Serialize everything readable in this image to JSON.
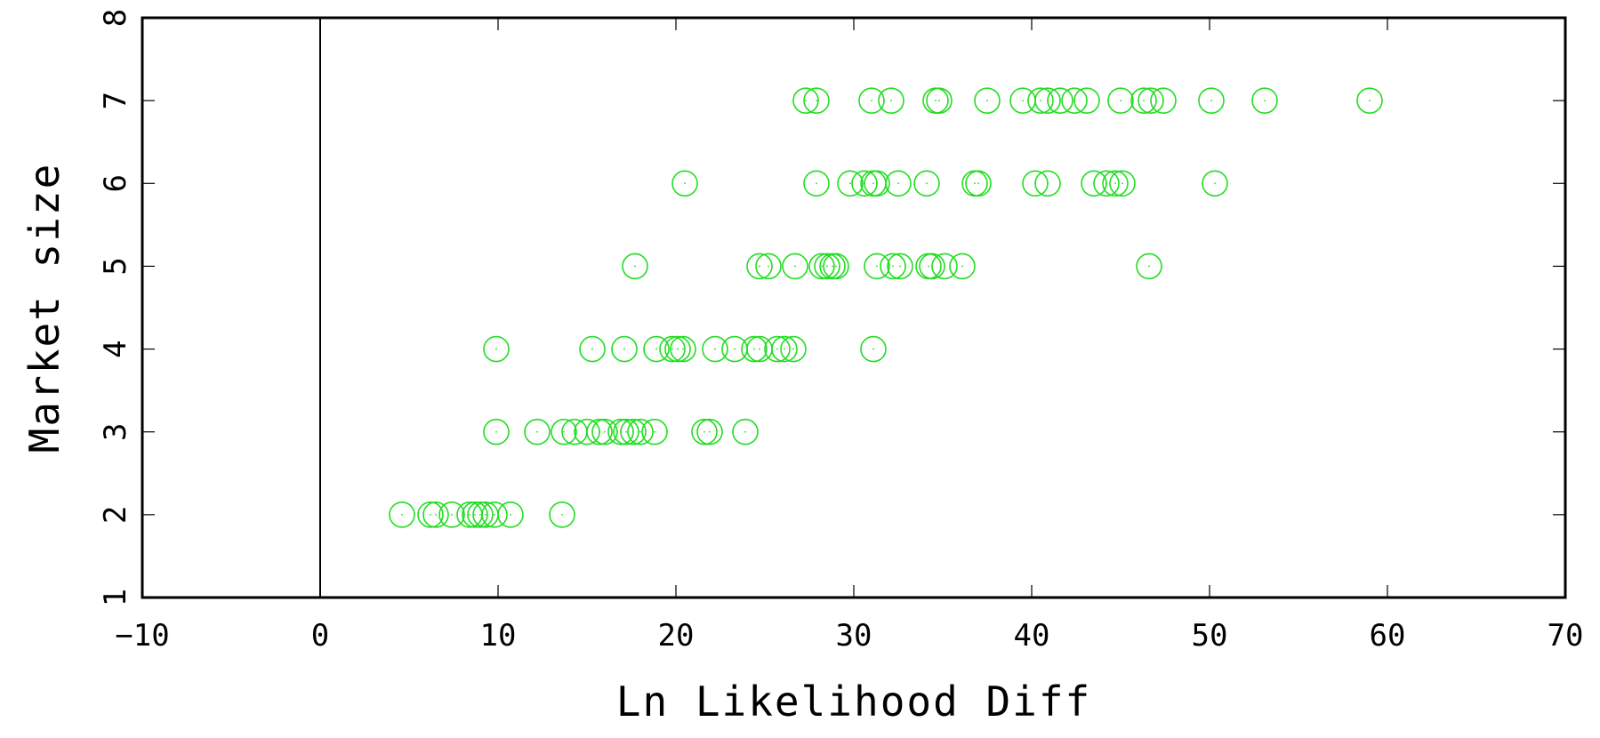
{
  "chart_data": {
    "type": "scatter",
    "title": "",
    "xlabel": "Ln Likelihood Diff",
    "ylabel": "Market size",
    "xlim": [
      -10,
      70
    ],
    "ylim": [
      1,
      8
    ],
    "xticks": [
      "−10",
      "0",
      "10",
      "20",
      "30",
      "40",
      "50",
      "60",
      "70"
    ],
    "yticks": [
      "1",
      "2",
      "3",
      "4",
      "5",
      "6",
      "7",
      "8"
    ],
    "grid": false,
    "vertical_reference_line_x": 0,
    "marker_color": "#22dd22",
    "series": [
      {
        "points": [
          {
            "x": 4.6,
            "y": 2
          },
          {
            "x": 6.2,
            "y": 2
          },
          {
            "x": 6.5,
            "y": 2
          },
          {
            "x": 7.4,
            "y": 2
          },
          {
            "x": 8.4,
            "y": 2
          },
          {
            "x": 8.7,
            "y": 2
          },
          {
            "x": 9.0,
            "y": 2
          },
          {
            "x": 9.3,
            "y": 2
          },
          {
            "x": 9.8,
            "y": 2
          },
          {
            "x": 10.7,
            "y": 2
          },
          {
            "x": 13.6,
            "y": 2
          },
          {
            "x": 9.9,
            "y": 3
          },
          {
            "x": 12.2,
            "y": 3
          },
          {
            "x": 13.7,
            "y": 3
          },
          {
            "x": 14.3,
            "y": 3
          },
          {
            "x": 15.0,
            "y": 3
          },
          {
            "x": 15.7,
            "y": 3
          },
          {
            "x": 16.0,
            "y": 3
          },
          {
            "x": 16.9,
            "y": 3
          },
          {
            "x": 17.2,
            "y": 3
          },
          {
            "x": 17.6,
            "y": 3
          },
          {
            "x": 18.0,
            "y": 3
          },
          {
            "x": 18.8,
            "y": 3
          },
          {
            "x": 21.6,
            "y": 3
          },
          {
            "x": 21.9,
            "y": 3
          },
          {
            "x": 23.9,
            "y": 3
          },
          {
            "x": 9.9,
            "y": 4
          },
          {
            "x": 15.3,
            "y": 4
          },
          {
            "x": 17.1,
            "y": 4
          },
          {
            "x": 18.9,
            "y": 4
          },
          {
            "x": 19.8,
            "y": 4
          },
          {
            "x": 20.1,
            "y": 4
          },
          {
            "x": 20.4,
            "y": 4
          },
          {
            "x": 22.2,
            "y": 4
          },
          {
            "x": 23.3,
            "y": 4
          },
          {
            "x": 24.4,
            "y": 4
          },
          {
            "x": 24.7,
            "y": 4
          },
          {
            "x": 25.7,
            "y": 4
          },
          {
            "x": 26.1,
            "y": 4
          },
          {
            "x": 26.6,
            "y": 4
          },
          {
            "x": 31.1,
            "y": 4
          },
          {
            "x": 17.7,
            "y": 5
          },
          {
            "x": 24.7,
            "y": 5
          },
          {
            "x": 25.2,
            "y": 5
          },
          {
            "x": 26.7,
            "y": 5
          },
          {
            "x": 28.2,
            "y": 5
          },
          {
            "x": 28.5,
            "y": 5
          },
          {
            "x": 28.8,
            "y": 5
          },
          {
            "x": 29.0,
            "y": 5
          },
          {
            "x": 31.3,
            "y": 5
          },
          {
            "x": 32.2,
            "y": 5
          },
          {
            "x": 32.6,
            "y": 5
          },
          {
            "x": 34.2,
            "y": 5
          },
          {
            "x": 34.4,
            "y": 5
          },
          {
            "x": 35.1,
            "y": 5
          },
          {
            "x": 36.1,
            "y": 5
          },
          {
            "x": 46.6,
            "y": 5
          },
          {
            "x": 20.5,
            "y": 6
          },
          {
            "x": 27.9,
            "y": 6
          },
          {
            "x": 29.8,
            "y": 6
          },
          {
            "x": 30.6,
            "y": 6
          },
          {
            "x": 31.1,
            "y": 6
          },
          {
            "x": 31.3,
            "y": 6
          },
          {
            "x": 32.5,
            "y": 6
          },
          {
            "x": 34.1,
            "y": 6
          },
          {
            "x": 36.8,
            "y": 6
          },
          {
            "x": 37.0,
            "y": 6
          },
          {
            "x": 40.2,
            "y": 6
          },
          {
            "x": 40.9,
            "y": 6
          },
          {
            "x": 43.5,
            "y": 6
          },
          {
            "x": 44.2,
            "y": 6
          },
          {
            "x": 44.7,
            "y": 6
          },
          {
            "x": 45.1,
            "y": 6
          },
          {
            "x": 50.3,
            "y": 6
          },
          {
            "x": 27.3,
            "y": 7
          },
          {
            "x": 27.9,
            "y": 7
          },
          {
            "x": 31.0,
            "y": 7
          },
          {
            "x": 32.1,
            "y": 7
          },
          {
            "x": 34.6,
            "y": 7
          },
          {
            "x": 34.8,
            "y": 7
          },
          {
            "x": 37.5,
            "y": 7
          },
          {
            "x": 39.5,
            "y": 7
          },
          {
            "x": 40.5,
            "y": 7
          },
          {
            "x": 40.9,
            "y": 7
          },
          {
            "x": 41.6,
            "y": 7
          },
          {
            "x": 42.4,
            "y": 7
          },
          {
            "x": 43.1,
            "y": 7
          },
          {
            "x": 45.0,
            "y": 7
          },
          {
            "x": 46.3,
            "y": 7
          },
          {
            "x": 46.7,
            "y": 7
          },
          {
            "x": 47.4,
            "y": 7
          },
          {
            "x": 50.1,
            "y": 7
          },
          {
            "x": 53.1,
            "y": 7
          },
          {
            "x": 59.0,
            "y": 7
          }
        ]
      }
    ]
  }
}
